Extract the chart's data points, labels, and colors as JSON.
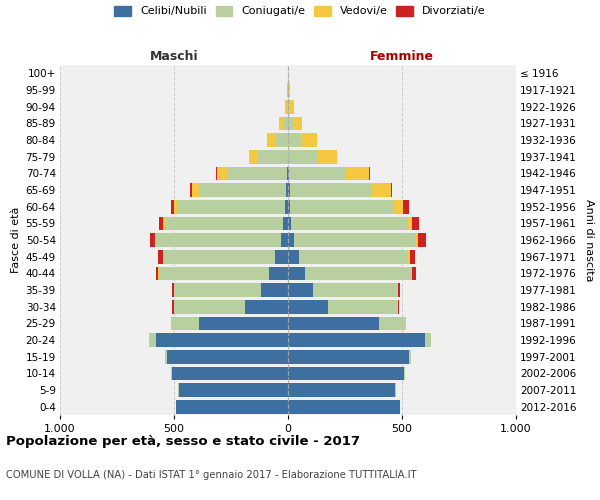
{
  "age_groups": [
    "0-4",
    "5-9",
    "10-14",
    "15-19",
    "20-24",
    "25-29",
    "30-34",
    "35-39",
    "40-44",
    "45-49",
    "50-54",
    "55-59",
    "60-64",
    "65-69",
    "70-74",
    "75-79",
    "80-84",
    "85-89",
    "90-94",
    "95-99",
    "100+"
  ],
  "birth_years": [
    "2012-2016",
    "2007-2011",
    "2002-2006",
    "1997-2001",
    "1992-1996",
    "1987-1991",
    "1982-1986",
    "1977-1981",
    "1972-1976",
    "1967-1971",
    "1962-1966",
    "1957-1961",
    "1952-1956",
    "1947-1951",
    "1942-1946",
    "1937-1941",
    "1932-1936",
    "1927-1931",
    "1922-1926",
    "1917-1921",
    "≤ 1916"
  ],
  "males": {
    "celibi": [
      490,
      480,
      510,
      530,
      580,
      390,
      190,
      120,
      85,
      55,
      30,
      20,
      15,
      10,
      5,
      0,
      0,
      0,
      0,
      0,
      0
    ],
    "coniugati": [
      2,
      2,
      5,
      10,
      30,
      120,
      310,
      380,
      480,
      490,
      550,
      520,
      470,
      380,
      260,
      130,
      55,
      20,
      5,
      0,
      0
    ],
    "vedovi": [
      0,
      0,
      0,
      0,
      0,
      1,
      2,
      2,
      3,
      5,
      5,
      8,
      15,
      30,
      45,
      40,
      35,
      20,
      10,
      5,
      0
    ],
    "divorziati": [
      0,
      0,
      0,
      0,
      0,
      2,
      5,
      8,
      12,
      18,
      20,
      18,
      12,
      8,
      5,
      2,
      0,
      0,
      0,
      0,
      0
    ]
  },
  "females": {
    "nubili": [
      490,
      470,
      510,
      530,
      600,
      400,
      175,
      110,
      75,
      50,
      25,
      15,
      10,
      10,
      5,
      0,
      0,
      0,
      0,
      0,
      0
    ],
    "coniugate": [
      2,
      2,
      5,
      10,
      25,
      115,
      305,
      370,
      465,
      475,
      535,
      510,
      455,
      360,
      250,
      125,
      55,
      20,
      5,
      0,
      0
    ],
    "vedove": [
      0,
      0,
      0,
      0,
      0,
      1,
      2,
      3,
      5,
      8,
      10,
      20,
      40,
      80,
      100,
      90,
      70,
      40,
      20,
      10,
      0
    ],
    "divorziate": [
      0,
      0,
      0,
      0,
      0,
      2,
      5,
      10,
      18,
      25,
      35,
      30,
      25,
      8,
      5,
      2,
      0,
      0,
      0,
      0,
      0
    ]
  },
  "colors": {
    "celibi": "#3d6fa0",
    "coniugati": "#b8cfa0",
    "vedovi": "#f5c842",
    "divorziati": "#cc2222"
  },
  "title": "Popolazione per età, sesso e stato civile - 2017",
  "subtitle": "COMUNE DI VOLLA (NA) - Dati ISTAT 1° gennaio 2017 - Elaborazione TUTTITALIA.IT",
  "xlabel_left": "Maschi",
  "xlabel_right": "Femmine",
  "ylabel_left": "Fasce di età",
  "ylabel_right": "Anni di nascita",
  "xlim": 1000,
  "background_color": "#ffffff",
  "plot_bg_color": "#f0f0f0",
  "grid_color": "#cccccc",
  "legend_labels": [
    "Celibi/Nubili",
    "Coniugati/e",
    "Vedovi/e",
    "Divorziati/e"
  ]
}
